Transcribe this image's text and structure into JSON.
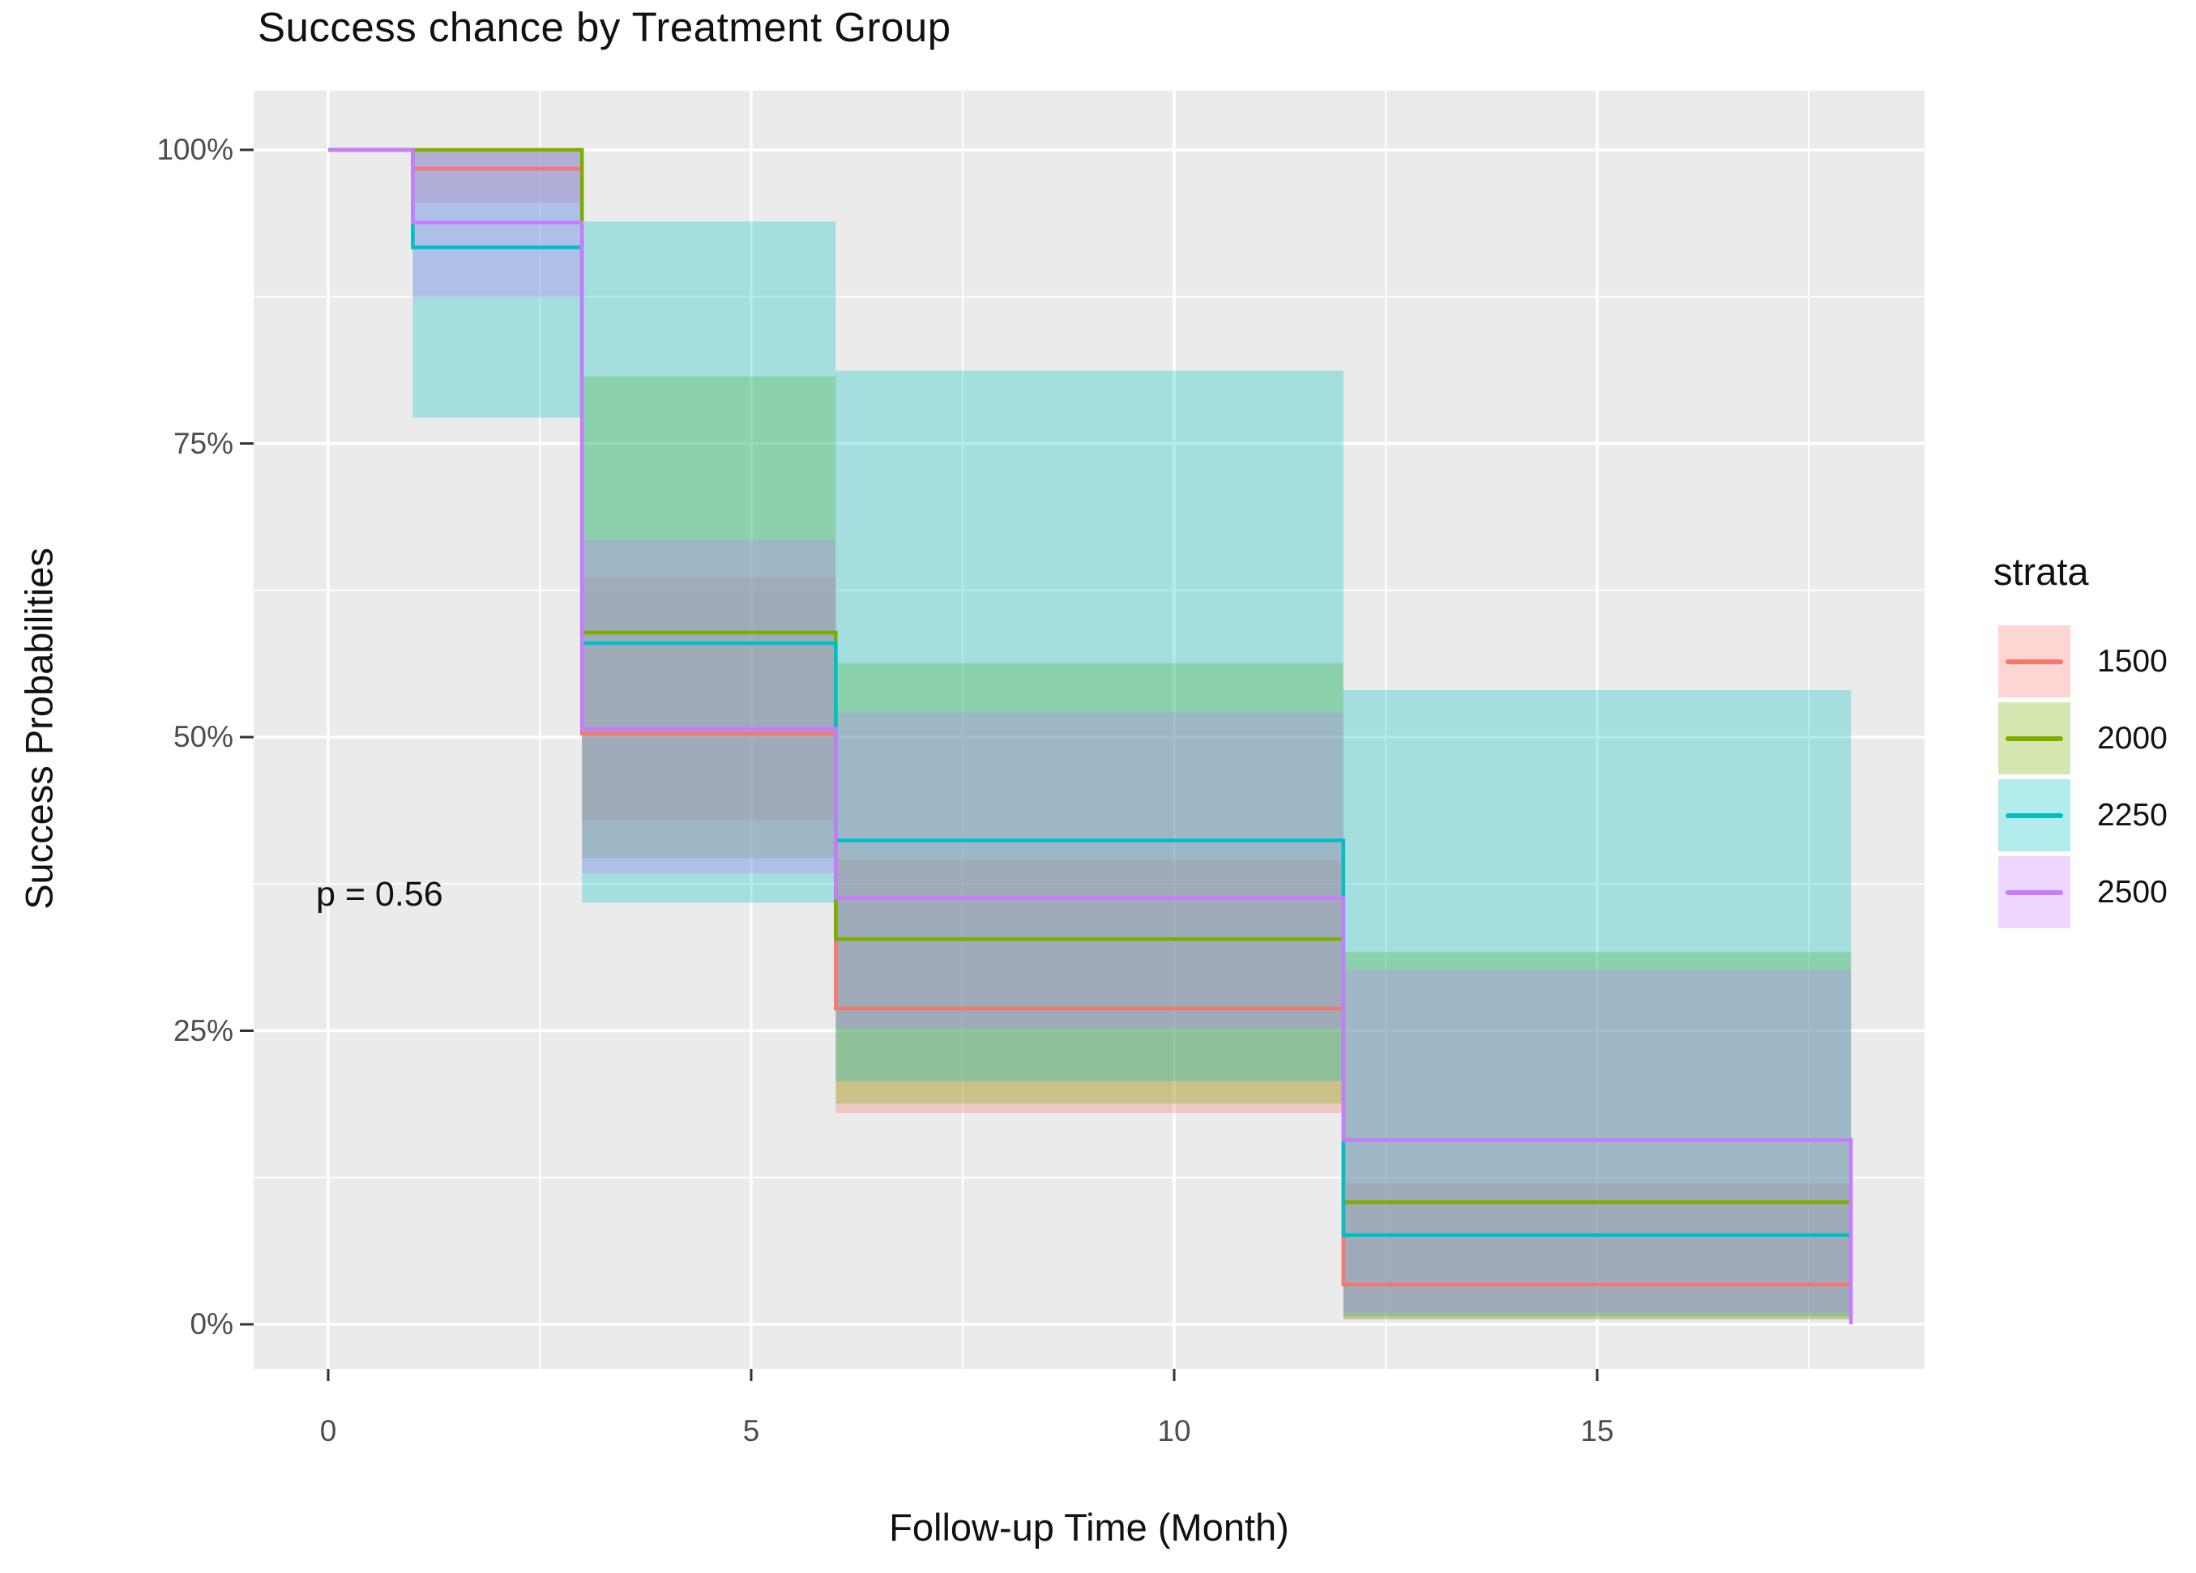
{
  "title": "Success chance by Treatment Group",
  "annotation": {
    "text": "p = 0.56"
  },
  "axes": {
    "x": {
      "title": "Follow-up Time (Month)",
      "domain": [
        0,
        18
      ],
      "major_ticks": [
        {
          "label": "0",
          "month": 0
        },
        {
          "label": "5",
          "month": 5
        },
        {
          "label": "10",
          "month": 10
        },
        {
          "label": "15",
          "month": 15
        }
      ],
      "minor_ticks": [
        2.5,
        7.5,
        12.5,
        17.5
      ]
    },
    "y": {
      "title": "Success Probabilities",
      "domain": [
        0,
        100
      ],
      "major_ticks": [
        {
          "label": "100%",
          "pct": 100
        },
        {
          "label": "75%",
          "pct": 75
        },
        {
          "label": "50%",
          "pct": 50
        },
        {
          "label": "25%",
          "pct": 25
        },
        {
          "label": "0%",
          "pct": 0
        }
      ],
      "minor_ticks": [
        87.5,
        62.5,
        37.5,
        12.5
      ]
    }
  },
  "legend": {
    "title": "strata",
    "items": [
      {
        "label": "1500",
        "color": "#F8766D"
      },
      {
        "label": "2000",
        "color": "#7CAE00"
      },
      {
        "label": "2250",
        "color": "#00BFC4"
      },
      {
        "label": "2500",
        "color": "#C77CFF"
      }
    ]
  },
  "style": {
    "panel_fill": "#EBEBEB",
    "gridline_color": "#FFFFFF",
    "tick_mark_color": "#333333",
    "ribbon_opacity": 0.3
  },
  "chart_data": {
    "type": "line",
    "subtype": "kaplan-meier-step-with-ci",
    "title": "Success chance by Treatment Group",
    "xlabel": "Follow-up Time (Month)",
    "ylabel": "Success Probabilities",
    "xlim": [
      0,
      18
    ],
    "ylim_pct": [
      0,
      100
    ],
    "grid": "on",
    "legend_position": "right",
    "series": [
      {
        "name": "1500",
        "color": "#F8766D",
        "steps_month_pct": [
          [
            0,
            100
          ],
          [
            1,
            98.4
          ],
          [
            3,
            50.3
          ],
          [
            6,
            26.9
          ],
          [
            12,
            3.4
          ]
        ],
        "end_month": 18,
        "drop_to_zero_at_end": false,
        "ci_segments_month_lo_hi_pct": [
          [
            1,
            3,
            95.5,
            100
          ],
          [
            3,
            6,
            42.9,
            63.6
          ],
          [
            6,
            12,
            18.0,
            39.5
          ],
          [
            12,
            18,
            0.5,
            12.0
          ]
        ]
      },
      {
        "name": "2000",
        "color": "#7CAE00",
        "steps_month_pct": [
          [
            0,
            100
          ],
          [
            3,
            58.9
          ],
          [
            6,
            32.8
          ],
          [
            12,
            10.4
          ]
        ],
        "end_month": 18,
        "drop_to_zero_at_end": false,
        "ci_segments_month_lo_hi_pct": [
          [
            3,
            6,
            39.7,
            80.7
          ],
          [
            6,
            12,
            18.8,
            56.3
          ],
          [
            12,
            18,
            0.4,
            31.7
          ]
        ]
      },
      {
        "name": "2250",
        "color": "#00BFC4",
        "steps_month_pct": [
          [
            0,
            100
          ],
          [
            1,
            91.7
          ],
          [
            3,
            58.0
          ],
          [
            6,
            41.2
          ],
          [
            12,
            7.6
          ]
        ],
        "end_month": 18,
        "drop_to_zero_at_end": false,
        "ci_segments_month_lo_hi_pct": [
          [
            1,
            3,
            77.2,
            100
          ],
          [
            3,
            6,
            35.9,
            93.9
          ],
          [
            6,
            12,
            20.7,
            81.2
          ],
          [
            12,
            18,
            0.7,
            54.0
          ]
        ]
      },
      {
        "name": "2500",
        "color": "#C77CFF",
        "steps_month_pct": [
          [
            0,
            100
          ],
          [
            1,
            93.8
          ],
          [
            3,
            50.7
          ],
          [
            6,
            36.3
          ],
          [
            12,
            15.7
          ]
        ],
        "end_month": 18,
        "drop_to_zero_at_end": true,
        "ci_segments_month_lo_hi_pct": [
          [
            1,
            3,
            87.4,
            100
          ],
          [
            3,
            6,
            38.4,
            66.8
          ],
          [
            6,
            12,
            25.2,
            52.1
          ],
          [
            12,
            18,
            1.0,
            30.2
          ]
        ]
      }
    ]
  }
}
